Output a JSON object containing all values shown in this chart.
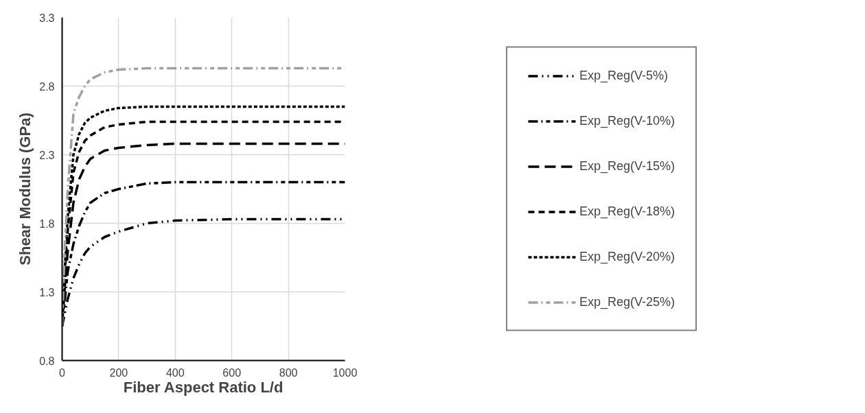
{
  "chart_data": {
    "type": "line",
    "xlabel": "Fiber Aspect Ratio L/d",
    "ylabel": "Shear Modulus (GPa)",
    "x": [
      0,
      10,
      20,
      40,
      60,
      80,
      100,
      150,
      200,
      300,
      400,
      600,
      800,
      1000
    ],
    "xlim": [
      0,
      1000
    ],
    "xticks": [
      0,
      200,
      400,
      600,
      800,
      1000
    ],
    "ylim": [
      0.8,
      3.3
    ],
    "yticks": [
      0.8,
      1.3,
      1.8,
      2.3,
      2.8,
      3.3
    ],
    "grid": true,
    "legend": "right",
    "marker": "none",
    "series": [
      {
        "name": "Exp_Reg(V-5%)",
        "color": "#000000",
        "line_style": "dashdotdot",
        "values": [
          1.05,
          1.15,
          1.25,
          1.4,
          1.5,
          1.58,
          1.63,
          1.7,
          1.74,
          1.8,
          1.82,
          1.83,
          1.83,
          1.83
        ]
      },
      {
        "name": "Exp_Reg(V-10%)",
        "color": "#000000",
        "line_style": "dashdot",
        "values": [
          1.05,
          1.25,
          1.45,
          1.65,
          1.78,
          1.88,
          1.95,
          2.02,
          2.05,
          2.09,
          2.1,
          2.1,
          2.1,
          2.1
        ]
      },
      {
        "name": "Exp_Reg(V-15%)",
        "color": "#000000",
        "line_style": "longdash",
        "values": [
          1.05,
          1.35,
          1.6,
          1.95,
          2.12,
          2.21,
          2.27,
          2.33,
          2.35,
          2.37,
          2.38,
          2.38,
          2.38,
          2.38
        ]
      },
      {
        "name": "Exp_Reg(V-18%)",
        "color": "#000000",
        "line_style": "dashed",
        "values": [
          1.05,
          1.45,
          1.75,
          2.17,
          2.32,
          2.4,
          2.44,
          2.5,
          2.52,
          2.54,
          2.54,
          2.54,
          2.54,
          2.54
        ]
      },
      {
        "name": "Exp_Reg(V-20%)",
        "color": "#000000",
        "line_style": "dotted",
        "values": [
          1.05,
          1.5,
          1.85,
          2.3,
          2.45,
          2.53,
          2.57,
          2.62,
          2.64,
          2.65,
          2.65,
          2.65,
          2.65,
          2.65
        ]
      },
      {
        "name": "Exp_Reg(V-25%)",
        "color": "#a0a0a0",
        "line_style": "dashdot",
        "values": [
          1.05,
          1.65,
          2.05,
          2.6,
          2.72,
          2.8,
          2.85,
          2.9,
          2.92,
          2.93,
          2.93,
          2.93,
          2.93,
          2.93
        ]
      }
    ]
  }
}
